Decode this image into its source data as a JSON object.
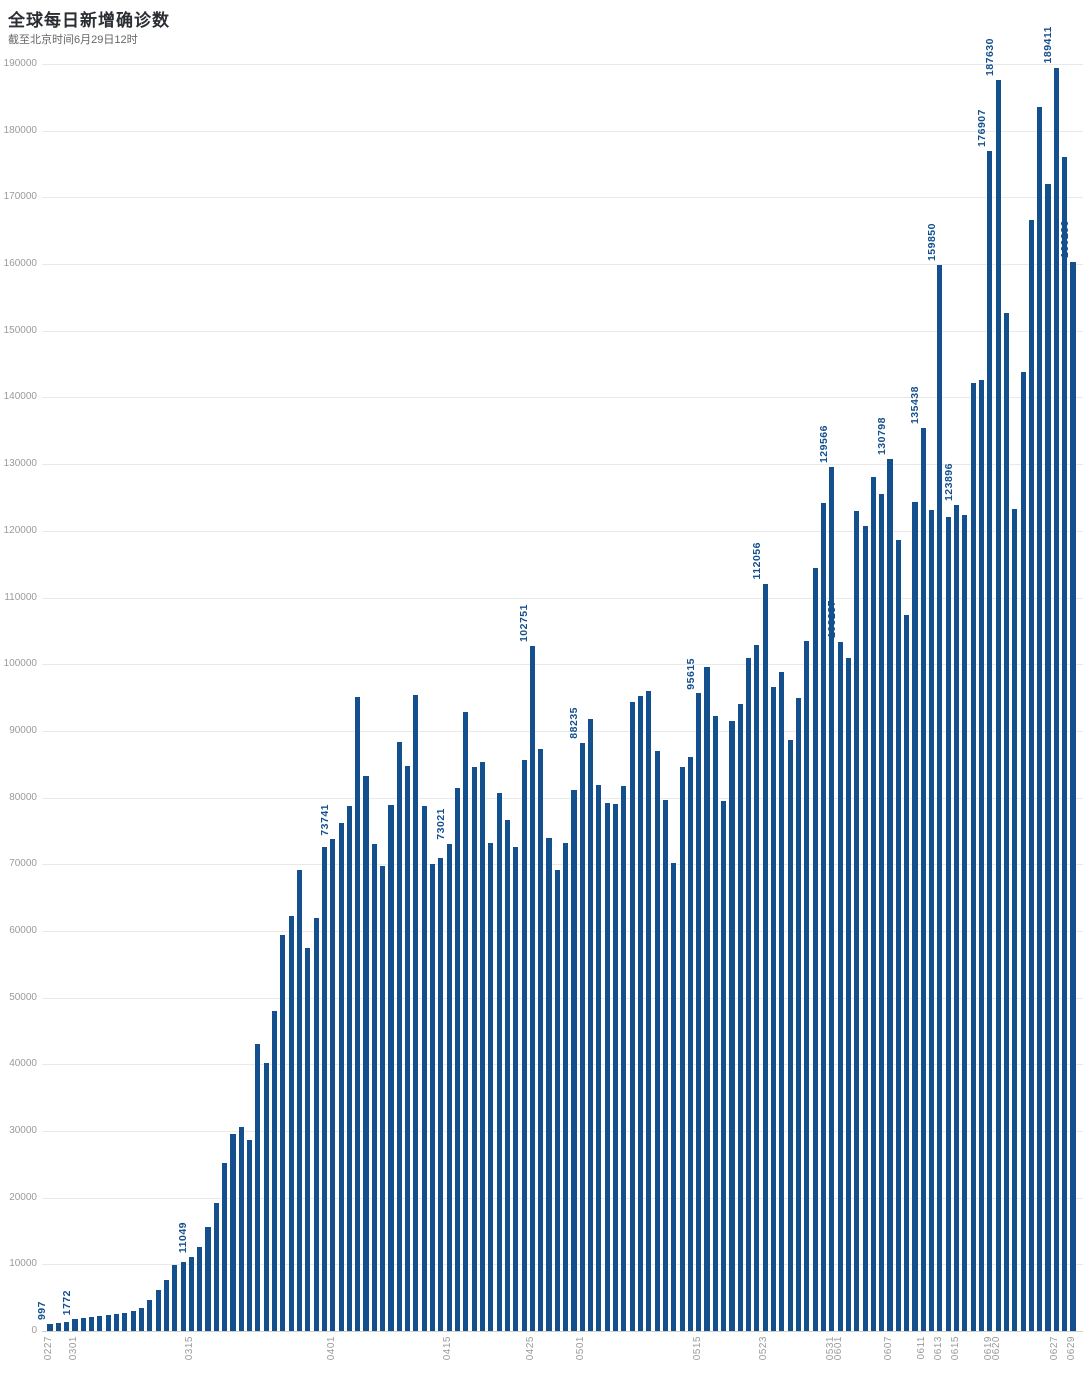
{
  "header": {
    "title": "全球每日新增确诊数",
    "subtitle": "截至北京时间6月29日12时"
  },
  "colors": {
    "bar": "#15508e",
    "value_label": "#15508e",
    "axis_label": "#9b9b9b",
    "gridline": "#e9e9e9"
  },
  "chart_data": {
    "type": "bar",
    "title": "全球每日新增确诊数",
    "subtitle": "截至北京时间6月29日12时",
    "xlabel": "",
    "ylabel": "",
    "ylim": [
      0,
      190000
    ],
    "y_tick_step": 10000,
    "grid": true,
    "x": [
      "0227",
      "0228",
      "0229",
      "0301",
      "0302",
      "0303",
      "0304",
      "0305",
      "0306",
      "0307",
      "0308",
      "0309",
      "0310",
      "0311",
      "0312",
      "0313",
      "0314",
      "0315",
      "0316",
      "0317",
      "0318",
      "0319",
      "0320",
      "0321",
      "0322",
      "0323",
      "0324",
      "0325",
      "0326",
      "0327",
      "0328",
      "0329",
      "0330",
      "0331",
      "0401",
      "0402",
      "0403",
      "0404",
      "0405",
      "0406",
      "0407",
      "0408",
      "0409",
      "0410",
      "0411",
      "0412",
      "0413",
      "0414",
      "0415",
      "0416",
      "0417",
      "0418",
      "0419",
      "0420",
      "0421",
      "0422",
      "0423",
      "0424",
      "0425",
      "0426",
      "0427",
      "0428",
      "0429",
      "0430",
      "0501",
      "0502",
      "0503",
      "0504",
      "0505",
      "0506",
      "0507",
      "0508",
      "0509",
      "0510",
      "0511",
      "0512",
      "0513",
      "0514",
      "0515",
      "0516",
      "0517",
      "0518",
      "0519",
      "0520",
      "0521",
      "0522",
      "0523",
      "0524",
      "0525",
      "0526",
      "0527",
      "0528",
      "0529",
      "0530",
      "0531",
      "0601",
      "0602",
      "0603",
      "0604",
      "0605",
      "0606",
      "0607",
      "0608",
      "0609",
      "0610",
      "0611",
      "0612",
      "0613",
      "0614",
      "0615",
      "0616",
      "0617",
      "0618",
      "0619",
      "0620",
      "0621",
      "0622",
      "0623",
      "0624",
      "0625",
      "0626",
      "0627",
      "0628",
      "0629"
    ],
    "values": [
      997,
      1200,
      1400,
      1772,
      1900,
      2100,
      2250,
      2400,
      2550,
      2750,
      3000,
      3500,
      4600,
      6100,
      7600,
      9900,
      10400,
      11049,
      12600,
      15600,
      19200,
      25200,
      29600,
      30600,
      28600,
      43000,
      40200,
      48000,
      59400,
      62300,
      69100,
      57400,
      62000,
      72600,
      73741,
      76200,
      78700,
      95150,
      83200,
      73100,
      69700,
      78900,
      88400,
      84800,
      95400,
      78700,
      70100,
      70900,
      73021,
      81400,
      92900,
      84600,
      85400,
      73150,
      80650,
      76650,
      72650,
      85650,
      102751,
      87250,
      73900,
      69100,
      73200,
      81150,
      88235,
      91750,
      81900,
      79150,
      79000,
      81750,
      94400,
      95300,
      96000,
      87000,
      79650,
      70200,
      84550,
      86100,
      95615,
      99600,
      92250,
      79500,
      91500,
      94000,
      101000,
      102900,
      112056,
      96600,
      98800,
      88700,
      95000,
      103500,
      114500,
      124200,
      129566,
      103287,
      101000,
      123000,
      120750,
      128000,
      125500,
      130798,
      118650,
      107400,
      124350,
      135438,
      123150,
      159850,
      122100,
      123896,
      122400,
      142100,
      142600,
      176907,
      187630,
      152700,
      123300,
      143850,
      166650,
      183600,
      172050,
      189411,
      176100,
      160290
    ],
    "x_tick_labels": [
      "0227",
      "0301",
      "0315",
      "0401",
      "0415",
      "0425",
      "0501",
      "0515",
      "0523",
      "0531",
      "0601",
      "0607",
      "0611",
      "0613",
      "0615",
      "0619",
      "0620",
      "0627",
      "0629"
    ],
    "annotated_points": [
      {
        "date": "0227",
        "value": 997
      },
      {
        "date": "0301",
        "value": 1772
      },
      {
        "date": "0315",
        "value": 11049
      },
      {
        "date": "0401",
        "value": 73741
      },
      {
        "date": "0415",
        "value": 73021
      },
      {
        "date": "0425",
        "value": 102751
      },
      {
        "date": "0501",
        "value": 88235
      },
      {
        "date": "0515",
        "value": 95615
      },
      {
        "date": "0523",
        "value": 112056
      },
      {
        "date": "0531",
        "value": 129566
      },
      {
        "date": "0601",
        "value": 103287
      },
      {
        "date": "0607",
        "value": 130798
      },
      {
        "date": "0611",
        "value": 135438
      },
      {
        "date": "0613",
        "value": 159850
      },
      {
        "date": "0615",
        "value": 123896
      },
      {
        "date": "0619",
        "value": 176907
      },
      {
        "date": "0620",
        "value": 187630
      },
      {
        "date": "0627",
        "value": 189411
      },
      {
        "date": "0629",
        "value": 160290
      }
    ],
    "legend_position": "none"
  }
}
